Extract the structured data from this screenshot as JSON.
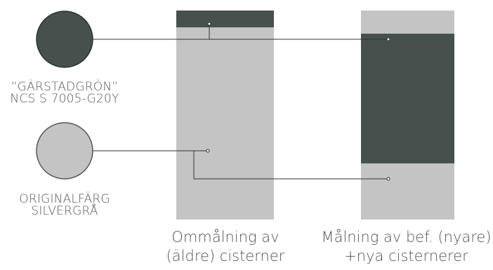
{
  "legend": [
    {
      "line1": "”GÄRSTADGRÖN”",
      "line2": "NCS S 7005-G20Y",
      "color": "#46514d"
    },
    {
      "line1": "ORIGINALFÄRG",
      "line2": "SILVERGRÅ",
      "color": "#c4c4c4"
    }
  ],
  "tanks": [
    {
      "caption_line1": "Ommålning av",
      "caption_line2": "(äldre) cisterner"
    },
    {
      "caption_line1": "Målning av bef. (nyare)",
      "caption_line2": "+nya cisternerer"
    }
  ],
  "colors": {
    "green": "#46514d",
    "silver": "#c4c4c4",
    "line": "#333333",
    "text": "#555555"
  }
}
